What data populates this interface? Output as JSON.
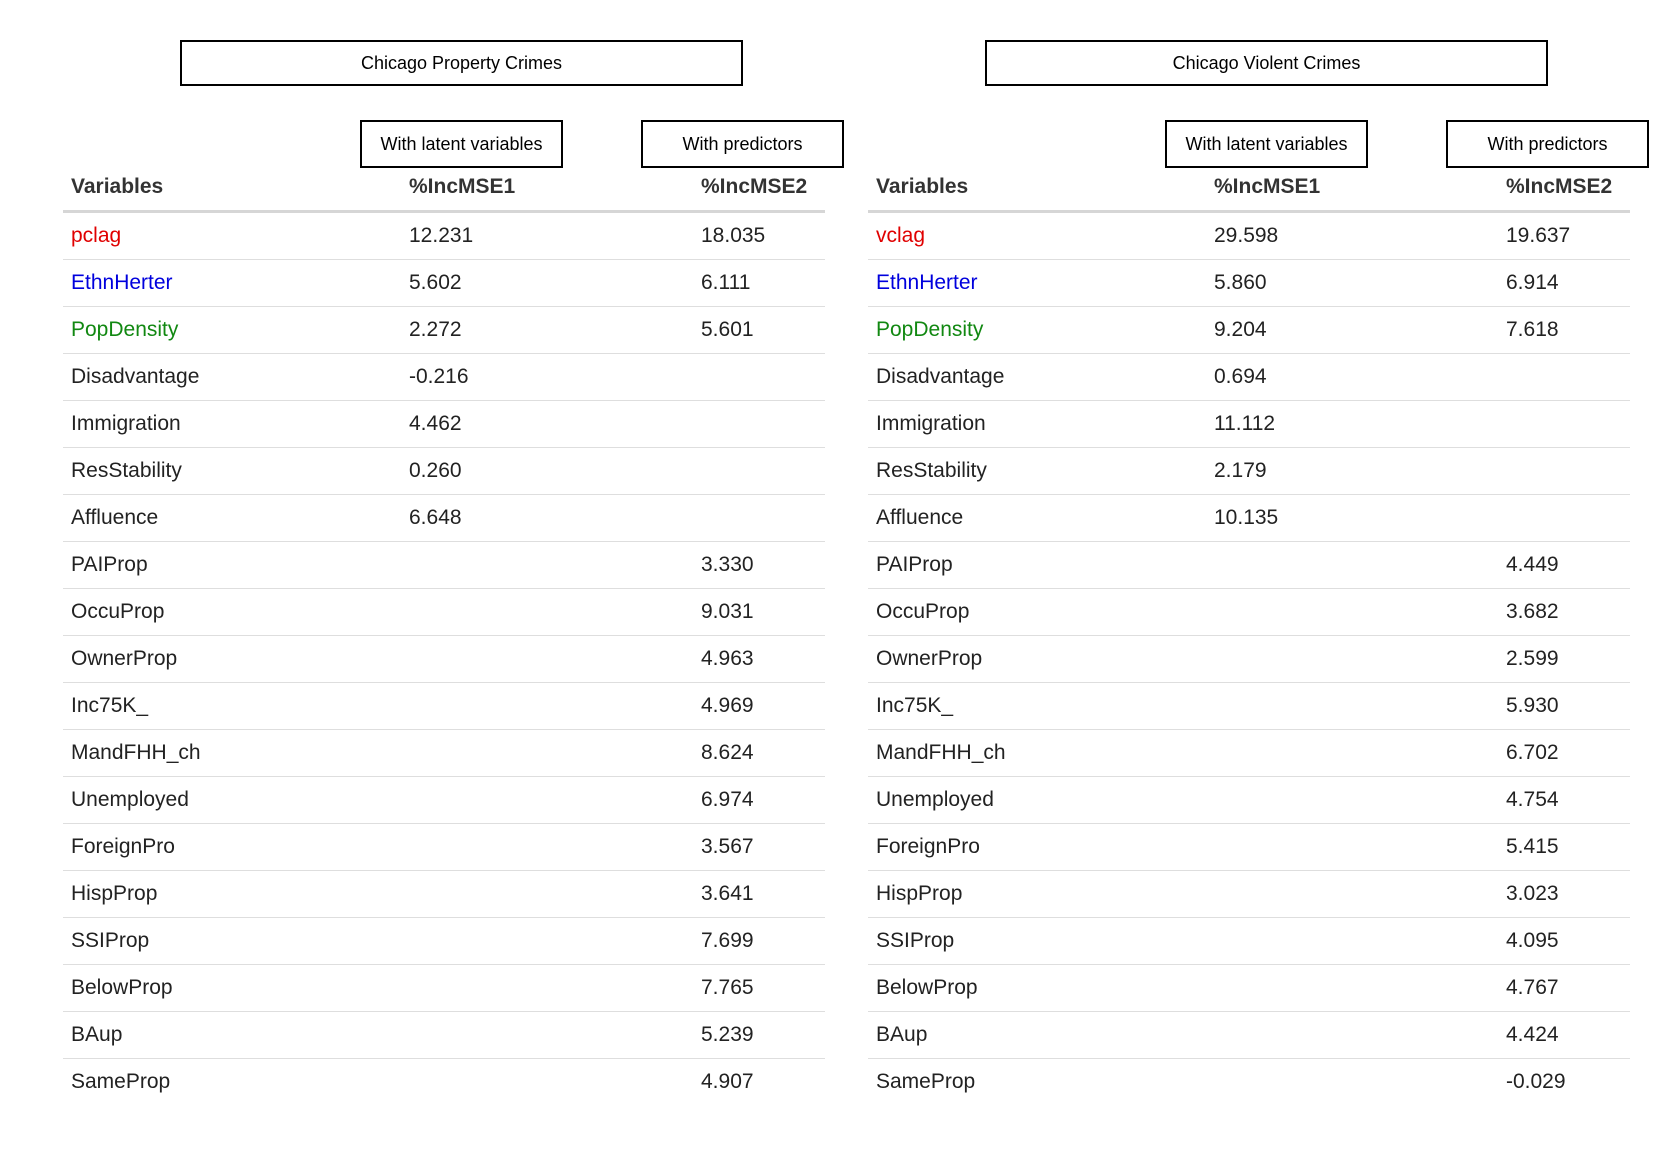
{
  "colors": {
    "lag": "#e00000",
    "ethn": "#0000dd",
    "popdensity": "#118811",
    "default": "#222222"
  },
  "panels": [
    {
      "title": "Chicago Property Crimes",
      "sub_latent": "With latent variables",
      "sub_predictors": "With predictors",
      "headers": [
        "Variables",
        "%IncMSE1",
        "%IncMSE2"
      ],
      "rows": [
        {
          "variable": "pclag",
          "m1": "12.231",
          "m2": "18.035",
          "color": "lag"
        },
        {
          "variable": "EthnHerter",
          "m1": "5.602",
          "m2": "6.111",
          "color": "ethn"
        },
        {
          "variable": "PopDensity",
          "m1": "2.272",
          "m2": "5.601",
          "color": "popdensity"
        },
        {
          "variable": "Disadvantage",
          "m1": "-0.216",
          "m2": "",
          "color": "default"
        },
        {
          "variable": "Immigration",
          "m1": "4.462",
          "m2": "",
          "color": "default"
        },
        {
          "variable": "ResStability",
          "m1": "0.260",
          "m2": "",
          "color": "default"
        },
        {
          "variable": "Affluence",
          "m1": "6.648",
          "m2": "",
          "color": "default"
        },
        {
          "variable": "PAIProp",
          "m1": "",
          "m2": "3.330",
          "color": "default"
        },
        {
          "variable": "OccuProp",
          "m1": "",
          "m2": "9.031",
          "color": "default"
        },
        {
          "variable": "OwnerProp",
          "m1": "",
          "m2": "4.963",
          "color": "default"
        },
        {
          "variable": "Inc75K_",
          "m1": "",
          "m2": "4.969",
          "color": "default"
        },
        {
          "variable": "MandFHH_ch",
          "m1": "",
          "m2": "8.624",
          "color": "default"
        },
        {
          "variable": "Unemployed",
          "m1": "",
          "m2": "6.974",
          "color": "default"
        },
        {
          "variable": "ForeignPro",
          "m1": "",
          "m2": "3.567",
          "color": "default"
        },
        {
          "variable": "HispProp",
          "m1": "",
          "m2": "3.641",
          "color": "default"
        },
        {
          "variable": "SSIProp",
          "m1": "",
          "m2": "7.699",
          "color": "default"
        },
        {
          "variable": "BelowProp",
          "m1": "",
          "m2": "7.765",
          "color": "default"
        },
        {
          "variable": "BAup",
          "m1": "",
          "m2": "5.239",
          "color": "default"
        },
        {
          "variable": "SameProp",
          "m1": "",
          "m2": "4.907",
          "color": "default"
        }
      ]
    },
    {
      "title": "Chicago Violent Crimes",
      "sub_latent": "With latent variables",
      "sub_predictors": "With predictors",
      "headers": [
        "Variables",
        "%IncMSE1",
        "%IncMSE2"
      ],
      "rows": [
        {
          "variable": "vclag",
          "m1": "29.598",
          "m2": "19.637",
          "color": "lag"
        },
        {
          "variable": "EthnHerter",
          "m1": "5.860",
          "m2": "6.914",
          "color": "ethn"
        },
        {
          "variable": "PopDensity",
          "m1": "9.204",
          "m2": "7.618",
          "color": "popdensity"
        },
        {
          "variable": "Disadvantage",
          "m1": "0.694",
          "m2": "",
          "color": "default"
        },
        {
          "variable": "Immigration",
          "m1": "11.112",
          "m2": "",
          "color": "default"
        },
        {
          "variable": "ResStability",
          "m1": "2.179",
          "m2": "",
          "color": "default"
        },
        {
          "variable": "Affluence",
          "m1": "10.135",
          "m2": "",
          "color": "default"
        },
        {
          "variable": "PAIProp",
          "m1": "",
          "m2": "4.449",
          "color": "default"
        },
        {
          "variable": "OccuProp",
          "m1": "",
          "m2": "3.682",
          "color": "default"
        },
        {
          "variable": "OwnerProp",
          "m1": "",
          "m2": "2.599",
          "color": "default"
        },
        {
          "variable": "Inc75K_",
          "m1": "",
          "m2": "5.930",
          "color": "default"
        },
        {
          "variable": "MandFHH_ch",
          "m1": "",
          "m2": "6.702",
          "color": "default"
        },
        {
          "variable": "Unemployed",
          "m1": "",
          "m2": "4.754",
          "color": "default"
        },
        {
          "variable": "ForeignPro",
          "m1": "",
          "m2": "5.415",
          "color": "default"
        },
        {
          "variable": "HispProp",
          "m1": "",
          "m2": "3.023",
          "color": "default"
        },
        {
          "variable": "SSIProp",
          "m1": "",
          "m2": "4.095",
          "color": "default"
        },
        {
          "variable": "BelowProp",
          "m1": "",
          "m2": "4.767",
          "color": "default"
        },
        {
          "variable": "BAup",
          "m1": "",
          "m2": "4.424",
          "color": "default"
        },
        {
          "variable": "SameProp",
          "m1": "",
          "m2": "-0.029",
          "color": "default"
        }
      ]
    }
  ]
}
